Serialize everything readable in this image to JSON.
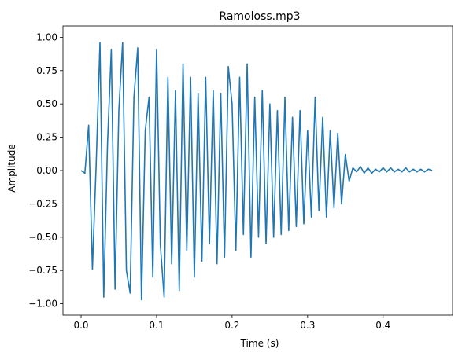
{
  "chart_data": {
    "type": "line",
    "title": "Ramoloss.mp3",
    "xlabel": "Time (s)",
    "ylabel": "Amplitude",
    "xlim": [
      -0.024,
      0.492
    ],
    "ylim": [
      -1.085,
      1.085
    ],
    "x_ticks": [
      0.0,
      0.1,
      0.2,
      0.3,
      0.4
    ],
    "x_tick_labels": [
      "0.0",
      "0.1",
      "0.2",
      "0.3",
      "0.4"
    ],
    "y_ticks": [
      1.0,
      0.75,
      0.5,
      0.25,
      0.0,
      -0.25,
      -0.5,
      -0.75,
      -1.0
    ],
    "y_tick_labels": [
      "1.00",
      "0.75",
      "0.50",
      "0.25",
      "0.00",
      "−0.25",
      "−0.50",
      "−0.75",
      "−1.00"
    ],
    "grid": false,
    "series": [
      {
        "color": "#1f77b4",
        "x": [
          0.0,
          0.005,
          0.01,
          0.015,
          0.02,
          0.025,
          0.03,
          0.035,
          0.04,
          0.045,
          0.05,
          0.055,
          0.06,
          0.065,
          0.07,
          0.075,
          0.08,
          0.085,
          0.09,
          0.095,
          0.1,
          0.105,
          0.11,
          0.115,
          0.12,
          0.125,
          0.13,
          0.135,
          0.14,
          0.145,
          0.15,
          0.155,
          0.16,
          0.165,
          0.17,
          0.175,
          0.18,
          0.185,
          0.19,
          0.195,
          0.2,
          0.205,
          0.21,
          0.215,
          0.22,
          0.225,
          0.23,
          0.235,
          0.24,
          0.245,
          0.25,
          0.255,
          0.26,
          0.265,
          0.27,
          0.275,
          0.28,
          0.285,
          0.29,
          0.295,
          0.3,
          0.305,
          0.31,
          0.315,
          0.32,
          0.325,
          0.33,
          0.335,
          0.34,
          0.345,
          0.35,
          0.355,
          0.36,
          0.365,
          0.37,
          0.375,
          0.38,
          0.385,
          0.39,
          0.395,
          0.4,
          0.405,
          0.41,
          0.415,
          0.42,
          0.425,
          0.43,
          0.435,
          0.44,
          0.445,
          0.45,
          0.455,
          0.46,
          0.465
        ],
        "y": [
          0.0,
          -0.02,
          0.34,
          -0.74,
          0.05,
          0.96,
          -0.95,
          0.2,
          0.91,
          -0.89,
          0.45,
          0.96,
          -0.75,
          -0.92,
          0.55,
          0.92,
          -0.97,
          0.3,
          0.55,
          -0.8,
          0.91,
          -0.56,
          -0.95,
          0.7,
          -0.7,
          0.6,
          -0.9,
          0.8,
          -0.6,
          0.7,
          -0.8,
          0.58,
          -0.68,
          0.7,
          -0.55,
          0.6,
          -0.7,
          0.58,
          -0.65,
          0.78,
          0.5,
          -0.6,
          0.7,
          -0.48,
          0.8,
          -0.65,
          0.55,
          -0.5,
          0.6,
          -0.55,
          0.5,
          -0.5,
          0.45,
          -0.48,
          0.55,
          -0.45,
          0.4,
          -0.42,
          0.45,
          -0.4,
          0.3,
          -0.35,
          0.55,
          -0.3,
          0.4,
          -0.35,
          0.3,
          -0.28,
          0.28,
          -0.25,
          0.12,
          -0.08,
          0.02,
          -0.01,
          0.03,
          -0.02,
          0.02,
          -0.02,
          0.01,
          -0.01,
          0.02,
          -0.01,
          0.02,
          -0.01,
          0.01,
          -0.01,
          0.02,
          -0.01,
          0.01,
          -0.01,
          0.01,
          -0.01,
          0.01,
          0.0
        ]
      }
    ]
  }
}
